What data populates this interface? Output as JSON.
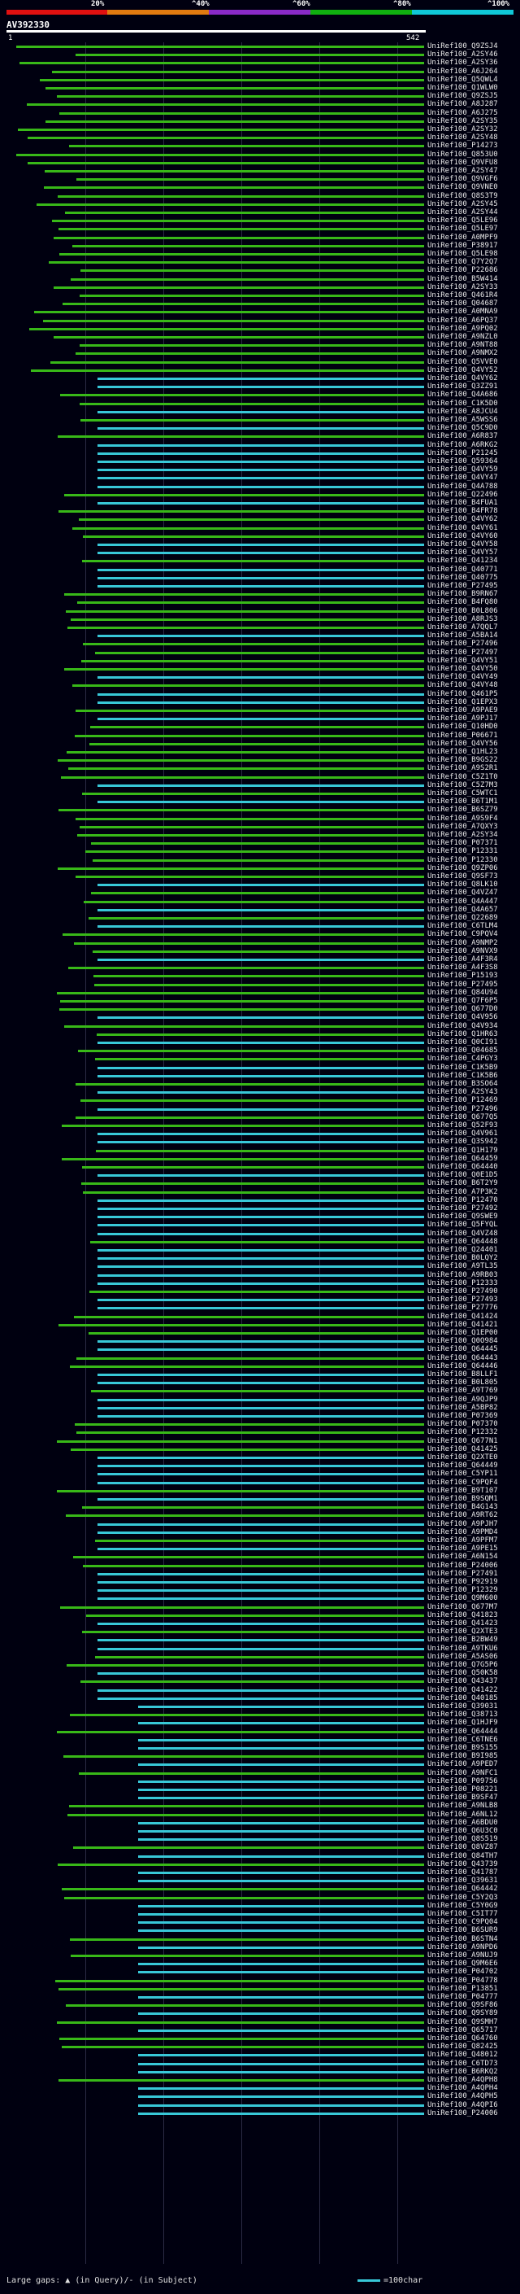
{
  "scale": {
    "labels": [
      "20%",
      "^40%",
      "^60%",
      "^80%",
      "^100%"
    ],
    "colors": [
      "#e01010",
      "#e07a10",
      "#8a2ac8",
      "#10b010",
      "#10c8d8"
    ]
  },
  "query": {
    "name": "AV392330",
    "start": "1",
    "end": "542"
  },
  "colors": {
    "high": "#38c8d8",
    "mid": "#38b818",
    "low": "#1a7a10"
  },
  "hits": [
    "UniRef100_Q9ZSJ4",
    "UniRef100_A2SY46",
    "UniRef100_A2SY36",
    "UniRef100_A6J264",
    "UniRef100_Q5QWL4",
    "UniRef100_Q1WLW0",
    "UniRef100_Q9ZSJ5",
    "UniRef100_A8J287",
    "UniRef100_A6J275",
    "UniRef100_A2SY35",
    "UniRef100_A2SY32",
    "UniRef100_A2SY48",
    "UniRef100_P14273",
    "UniRef100_Q853U0",
    "UniRef100_Q9VFU8",
    "UniRef100_A2SY47",
    "UniRef100_Q9VGF6",
    "UniRef100_Q9VNE0",
    "UniRef100_Q8S3T9",
    "UniRef100_A2SY45",
    "UniRef100_A2SY44",
    "UniRef100_Q5LE96",
    "UniRef100_Q5LE97",
    "UniRef100_A0MPF9",
    "UniRef100_P38917",
    "UniRef100_Q5LE98",
    "UniRef100_Q7Y2Q7",
    "UniRef100_P22686",
    "UniRef100_B5W414",
    "UniRef100_A2SY33",
    "UniRef100_Q461R4",
    "UniRef100_Q04687",
    "UniRef100_A0MNA9",
    "UniRef100_A6PQ37",
    "UniRef100_A9PQ02",
    "UniRef100_A9NZL0",
    "UniRef100_A9NT88",
    "UniRef100_A9NMX2",
    "UniRef100_Q5VVE0",
    "UniRef100_Q4VY52",
    "UniRef100_Q4VY62",
    "UniRef100_Q3ZZ91",
    "UniRef100_Q4A686",
    "UniRef100_C1K5D0",
    "UniRef100_A8JCU4",
    "UniRef100_A5WSS6",
    "UniRef100_Q5C9D0",
    "UniRef100_A6R837",
    "UniRef100_A6RKG2",
    "UniRef100_P21245",
    "UniRef100_Q59364",
    "UniRef100_Q4VY59",
    "UniRef100_Q4VY47",
    "UniRef100_Q4A788",
    "UniRef100_Q22496",
    "UniRef100_B4FUA1",
    "UniRef100_B4FR78",
    "UniRef100_Q4VY62",
    "UniRef100_Q4VY61",
    "UniRef100_Q4VY60",
    "UniRef100_Q4VY58",
    "UniRef100_Q4VY57",
    "UniRef100_Q41234",
    "UniRef100_Q40771",
    "UniRef100_Q40775",
    "UniRef100_P27495",
    "UniRef100_B9RN67",
    "UniRef100_B4FQ80",
    "UniRef100_B0L806",
    "UniRef100_A8RJS3",
    "UniRef100_A7QQL7",
    "UniRef100_A5BA14",
    "UniRef100_P27496",
    "UniRef100_P27497",
    "UniRef100_Q4VY51",
    "UniRef100_Q4VY50",
    "UniRef100_Q4VY49",
    "UniRef100_Q4VY48",
    "UniRef100_Q461P5",
    "UniRef100_Q1EPX3",
    "UniRef100_A9PAE9",
    "UniRef100_A9PJ17",
    "UniRef100_Q10HD0",
    "UniRef100_P06671",
    "UniRef100_Q4VY56",
    "UniRef100_Q1HL23",
    "UniRef100_B9GS22",
    "UniRef100_A9S2R1",
    "UniRef100_C5Z1T0",
    "UniRef100_C5Z7M3",
    "UniRef100_C5WTC1",
    "UniRef100_B6T1M1",
    "UniRef100_B6SZ79",
    "UniRef100_A9S9F4",
    "UniRef100_A7QXY3",
    "UniRef100_A2SY34",
    "UniRef100_P07371",
    "UniRef100_P12331",
    "UniRef100_P12330",
    "UniRef100_Q9ZP06",
    "UniRef100_Q9SF73",
    "UniRef100_Q8LK10",
    "UniRef100_Q4VZ47",
    "UniRef100_Q4A447",
    "UniRef100_Q4A657",
    "UniRef100_Q22689",
    "UniRef100_C6TLM4",
    "UniRef100_C9PQV4",
    "UniRef100_A9NMP2",
    "UniRef100_A9NVX9",
    "UniRef100_A4F3R4",
    "UniRef100_A4F3S8",
    "UniRef100_P15193",
    "UniRef100_P27495",
    "UniRef100_Q84U94",
    "UniRef100_Q7F6P5",
    "UniRef100_Q677D0",
    "UniRef100_Q4V956",
    "UniRef100_Q4V934",
    "UniRef100_Q1HR63",
    "UniRef100_Q0CI91",
    "UniRef100_Q04685",
    "UniRef100_C4PGY3",
    "UniRef100_C1K5B9",
    "UniRef100_C1K5B6",
    "UniRef100_B3SO64",
    "UniRef100_A2SY43",
    "UniRef100_P12469",
    "UniRef100_P27496",
    "UniRef100_Q677Q5",
    "UniRef100_Q52F93",
    "UniRef100_Q4V961",
    "UniRef100_Q3S942",
    "UniRef100_Q1H179",
    "UniRef100_Q64459",
    "UniRef100_Q64440",
    "UniRef100_Q0E1D5",
    "UniRef100_B6T2Y9",
    "UniRef100_A7P3K2",
    "UniRef100_P12470",
    "UniRef100_P27492",
    "UniRef100_Q9SWE9",
    "UniRef100_Q5FYQL",
    "UniRef100_Q4VZ48",
    "UniRef100_Q64448",
    "UniRef100_Q24401",
    "UniRef100_B0LQY2",
    "UniRef100_A9TL35",
    "UniRef100_A9RB03",
    "UniRef100_P12333",
    "UniRef100_P27490",
    "UniRef100_P27493",
    "UniRef100_P27776",
    "UniRef100_Q41424",
    "UniRef100_Q41421",
    "UniRef100_Q1EP00",
    "UniRef100_Q0O984",
    "UniRef100_Q64445",
    "UniRef100_Q64443",
    "UniRef100_Q64446",
    "UniRef100_B8LLF1",
    "UniRef100_B0L805",
    "UniRef100_A9T769",
    "UniRef100_A9QJP9",
    "UniRef100_A5BP82",
    "UniRef100_P07369",
    "UniRef100_P07370",
    "UniRef100_P12332",
    "UniRef100_Q677N1",
    "UniRef100_Q41425",
    "UniRef100_Q2XTE0",
    "UniRef100_Q64449",
    "UniRef100_C5YP11",
    "UniRef100_C9PQF4",
    "UniRef100_B9T107",
    "UniRef100_B9SQM1",
    "UniRef100_B4G143",
    "UniRef100_A9RT62",
    "UniRef100_A9PJH7",
    "UniRef100_A9PMD4",
    "UniRef100_A9PFM7",
    "UniRef100_A9PE15",
    "UniRef100_A6N154",
    "UniRef100_P24006",
    "UniRef100_P27491",
    "UniRef100_P92919",
    "UniRef100_P12329",
    "UniRef100_Q9M600",
    "UniRef100_Q677M7",
    "UniRef100_Q41823",
    "UniRef100_Q41423",
    "UniRef100_Q2XTE3",
    "UniRef100_B2BW49",
    "UniRef100_A9TKU6",
    "UniRef100_A5AS06",
    "UniRef100_Q7G5P6",
    "UniRef100_Q50K58",
    "UniRef100_Q43437",
    "UniRef100_Q41422",
    "UniRef100_Q40185",
    "UniRef100_Q39031",
    "UniRef100_Q38713",
    "UniRef100_Q1HJF9",
    "UniRef100_Q64444",
    "UniRef100_C6TNE6",
    "UniRef100_B9S155",
    "UniRef100_B9I985",
    "UniRef100_A9PED7",
    "UniRef100_A9NFC1",
    "UniRef100_P09756",
    "UniRef100_P08221",
    "UniRef100_B9SF47",
    "UniRef100_A9NLB8",
    "UniRef100_A6NL12",
    "UniRef100_A6BDU0",
    "UniRef100_Q6U3C0",
    "UniRef100_Q8S519",
    "UniRef100_Q8VZ87",
    "UniRef100_Q84TH7",
    "UniRef100_Q43739",
    "UniRef100_Q41787",
    "UniRef100_Q39631",
    "UniRef100_Q64442",
    "UniRef100_C5Y2Q3",
    "UniRef100_C5Y0G9",
    "UniRef100_C5IT77",
    "UniRef100_C9PQ04",
    "UniRef100_B6SUR9",
    "UniRef100_B6STN4",
    "UniRef100_A9NPD6",
    "UniRef100_A9NUJ9",
    "UniRef100_Q9M6E6",
    "UniRef100_P04702",
    "UniRef100_P04778",
    "UniRef100_P13851",
    "UniRef100_P04777",
    "UniRef100_Q9SF86",
    "UniRef100_Q9SY89",
    "UniRef100_Q9SMH7",
    "UniRef100_Q65717",
    "UniRef100_Q64760",
    "UniRef100_Q82425",
    "UniRef100_Q48012",
    "UniRef100_C6TD73",
    "UniRef100_B6RKQ2",
    "UniRef100_A4QPH8",
    "UniRef100_A4QPH4",
    "UniRef100_A4QPH5",
    "UniRef100_A4QPI6",
    "UniRef100_P24006"
  ],
  "footer": {
    "large_gaps_prefix": "Large gaps:",
    "large_gaps_text": "(in Query)/- (in Subject)",
    "legend_text": "=100char"
  }
}
